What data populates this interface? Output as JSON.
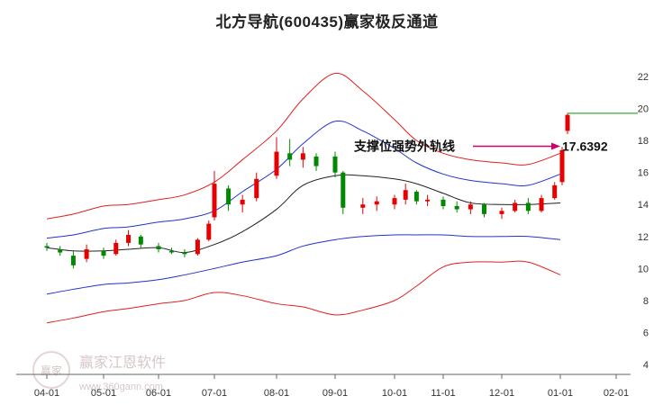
{
  "chart_data": {
    "type": "candlestick",
    "title": "北方导航(600435)赢家极反通道",
    "xlabel": "",
    "ylabel": "",
    "x_ticks": [
      "04-01",
      "05-01",
      "06-01",
      "07-01",
      "08-01",
      "09-01",
      "10-01",
      "11-01",
      "12-01",
      "01-01",
      "02-01"
    ],
    "y_ticks": [
      4,
      6,
      8,
      10,
      12,
      14,
      16,
      18,
      20,
      22
    ],
    "ylim": [
      3.5,
      23.5
    ],
    "grid": false,
    "annotation": {
      "label": "支撑位强势外轨线",
      "value": "17.6392",
      "price": 17.6392
    },
    "last_price_line": 19.7,
    "colors": {
      "up": "#e60000",
      "down": "#008800",
      "outer_band": "#e02020",
      "inner_band": "#2233cc",
      "middle_line": "#222222",
      "arrow": "#cc0066",
      "last_line": "#009900"
    },
    "series": [
      {
        "name": "",
        "role": "outer_upper",
        "x": [
          "04-01",
          "04-15",
          "05-01",
          "05-15",
          "06-01",
          "06-15",
          "07-01",
          "07-15",
          "08-01",
          "08-15",
          "09-01",
          "09-15",
          "10-01",
          "10-15",
          "11-01",
          "11-15",
          "12-01",
          "12-15",
          "01-01"
        ],
        "values": [
          13.1,
          13.4,
          13.9,
          14.0,
          14.3,
          14.6,
          15.4,
          16.8,
          18.6,
          20.6,
          22.2,
          21.1,
          19.3,
          18.0,
          17.2,
          16.8,
          16.6,
          16.5,
          17.2
        ]
      },
      {
        "name": "",
        "role": "inner_upper",
        "x": [
          "04-01",
          "04-15",
          "05-01",
          "05-15",
          "06-01",
          "06-15",
          "07-01",
          "07-15",
          "08-01",
          "08-15",
          "09-01",
          "09-15",
          "10-01",
          "10-15",
          "11-01",
          "11-15",
          "12-01",
          "12-15",
          "01-01"
        ],
        "values": [
          11.9,
          12.1,
          12.5,
          12.6,
          12.9,
          13.1,
          13.6,
          14.8,
          16.2,
          17.8,
          19.2,
          18.6,
          17.5,
          16.6,
          15.9,
          15.5,
          15.3,
          15.2,
          15.9
        ]
      },
      {
        "name": "",
        "role": "middle",
        "x": [
          "04-01",
          "04-15",
          "05-01",
          "05-15",
          "06-01",
          "06-15",
          "07-01",
          "07-15",
          "08-01",
          "08-15",
          "09-01",
          "09-15",
          "10-01",
          "10-15",
          "11-01",
          "11-15",
          "12-01",
          "12-15",
          "01-01"
        ],
        "values": [
          11.3,
          11.1,
          11.1,
          11.2,
          11.3,
          11.0,
          11.5,
          12.3,
          13.7,
          15.2,
          15.8,
          15.8,
          15.6,
          15.3,
          14.7,
          14.1,
          14.0,
          14.0,
          14.1
        ]
      },
      {
        "name": "",
        "role": "inner_lower",
        "x": [
          "04-01",
          "04-15",
          "05-01",
          "05-15",
          "06-01",
          "06-15",
          "07-01",
          "07-15",
          "08-01",
          "08-15",
          "09-01",
          "09-15",
          "10-01",
          "10-15",
          "11-01",
          "11-15",
          "12-01",
          "12-15",
          "01-01"
        ],
        "values": [
          8.4,
          8.7,
          9.0,
          9.1,
          9.3,
          9.6,
          10.0,
          10.4,
          10.8,
          11.4,
          11.8,
          12.0,
          12.1,
          12.1,
          12.1,
          12.0,
          12.0,
          12.0,
          11.8
        ]
      },
      {
        "name": "",
        "role": "outer_lower",
        "x": [
          "04-01",
          "04-15",
          "05-01",
          "05-15",
          "06-01",
          "06-15",
          "07-01",
          "07-15",
          "08-01",
          "08-15",
          "09-01",
          "09-15",
          "10-01",
          "10-15",
          "11-01",
          "11-15",
          "12-01",
          "12-15",
          "01-01"
        ],
        "values": [
          6.6,
          6.9,
          7.3,
          7.5,
          7.8,
          8.0,
          8.5,
          8.3,
          7.8,
          7.6,
          7.1,
          7.4,
          8.0,
          8.9,
          10.1,
          10.4,
          10.4,
          10.4,
          9.6
        ]
      }
    ],
    "candles": [
      {
        "x": "04-01",
        "open": 11.4,
        "high": 11.6,
        "low": 11.1,
        "close": 11.3
      },
      {
        "x": "04-08",
        "open": 11.2,
        "high": 11.4,
        "low": 10.8,
        "close": 11.0
      },
      {
        "x": "04-15",
        "open": 10.8,
        "high": 11.1,
        "low": 10.0,
        "close": 10.2
      },
      {
        "x": "04-22",
        "open": 10.6,
        "high": 11.5,
        "low": 10.4,
        "close": 11.2
      },
      {
        "x": "05-01",
        "open": 11.1,
        "high": 11.3,
        "low": 10.6,
        "close": 10.8
      },
      {
        "x": "05-08",
        "open": 10.9,
        "high": 11.8,
        "low": 10.8,
        "close": 11.6
      },
      {
        "x": "05-15",
        "open": 11.6,
        "high": 12.4,
        "low": 11.4,
        "close": 12.1
      },
      {
        "x": "05-22",
        "open": 12.0,
        "high": 12.1,
        "low": 11.3,
        "close": 11.5
      },
      {
        "x": "06-01",
        "open": 11.4,
        "high": 11.6,
        "low": 11.0,
        "close": 11.2
      },
      {
        "x": "06-08",
        "open": 11.1,
        "high": 11.3,
        "low": 10.9,
        "close": 11.0
      },
      {
        "x": "06-15",
        "open": 11.0,
        "high": 11.2,
        "low": 10.7,
        "close": 10.9
      },
      {
        "x": "06-22",
        "open": 10.9,
        "high": 11.9,
        "low": 10.8,
        "close": 11.8
      },
      {
        "x": "06-28",
        "open": 11.8,
        "high": 13.0,
        "low": 11.7,
        "close": 12.8
      },
      {
        "x": "07-01",
        "open": 13.2,
        "high": 16.1,
        "low": 13.0,
        "close": 15.3
      },
      {
        "x": "07-08",
        "open": 15.0,
        "high": 15.2,
        "low": 13.6,
        "close": 14.0
      },
      {
        "x": "07-15",
        "open": 14.0,
        "high": 14.6,
        "low": 13.5,
        "close": 14.3
      },
      {
        "x": "07-22",
        "open": 14.4,
        "high": 16.0,
        "low": 14.2,
        "close": 15.6
      },
      {
        "x": "08-01",
        "open": 15.8,
        "high": 18.2,
        "low": 15.6,
        "close": 17.3
      },
      {
        "x": "08-08",
        "open": 17.2,
        "high": 18.1,
        "low": 16.4,
        "close": 16.8
      },
      {
        "x": "08-15",
        "open": 16.8,
        "high": 17.6,
        "low": 16.3,
        "close": 17.2
      },
      {
        "x": "08-22",
        "open": 17.0,
        "high": 17.2,
        "low": 16.1,
        "close": 16.4
      },
      {
        "x": "09-01",
        "open": 17.0,
        "high": 17.3,
        "low": 15.7,
        "close": 16.0
      },
      {
        "x": "09-05",
        "open": 16.0,
        "high": 16.1,
        "low": 13.4,
        "close": 13.8
      },
      {
        "x": "09-15",
        "open": 13.8,
        "high": 14.4,
        "low": 13.4,
        "close": 14.0
      },
      {
        "x": "09-22",
        "open": 14.0,
        "high": 14.5,
        "low": 13.6,
        "close": 14.2
      },
      {
        "x": "10-01",
        "open": 14.0,
        "high": 14.6,
        "low": 13.7,
        "close": 14.4
      },
      {
        "x": "10-08",
        "open": 14.3,
        "high": 15.3,
        "low": 14.0,
        "close": 14.9
      },
      {
        "x": "10-15",
        "open": 14.8,
        "high": 14.9,
        "low": 14.0,
        "close": 14.2
      },
      {
        "x": "10-22",
        "open": 14.2,
        "high": 14.6,
        "low": 13.9,
        "close": 14.3
      },
      {
        "x": "11-01",
        "open": 14.3,
        "high": 14.5,
        "low": 13.7,
        "close": 13.9
      },
      {
        "x": "11-08",
        "open": 13.9,
        "high": 14.2,
        "low": 13.5,
        "close": 13.7
      },
      {
        "x": "11-15",
        "open": 13.7,
        "high": 14.2,
        "low": 13.4,
        "close": 14.0
      },
      {
        "x": "11-22",
        "open": 14.0,
        "high": 14.1,
        "low": 13.2,
        "close": 13.4
      },
      {
        "x": "12-01",
        "open": 13.4,
        "high": 13.8,
        "low": 13.1,
        "close": 13.6
      },
      {
        "x": "12-08",
        "open": 13.6,
        "high": 14.3,
        "low": 13.5,
        "close": 14.1
      },
      {
        "x": "12-15",
        "open": 14.1,
        "high": 14.4,
        "low": 13.4,
        "close": 13.6
      },
      {
        "x": "12-22",
        "open": 13.6,
        "high": 14.6,
        "low": 13.5,
        "close": 14.4
      },
      {
        "x": "12-29",
        "open": 14.4,
        "high": 15.4,
        "low": 14.3,
        "close": 15.2
      },
      {
        "x": "01-02",
        "open": 15.4,
        "high": 17.6,
        "low": 15.2,
        "close": 17.4
      },
      {
        "x": "01-05",
        "open": 18.6,
        "high": 19.7,
        "low": 18.4,
        "close": 19.6
      }
    ]
  },
  "watermark": {
    "name": "赢家江恩软件",
    "url": "www.360gann.com",
    "logo_text": "赢家"
  }
}
